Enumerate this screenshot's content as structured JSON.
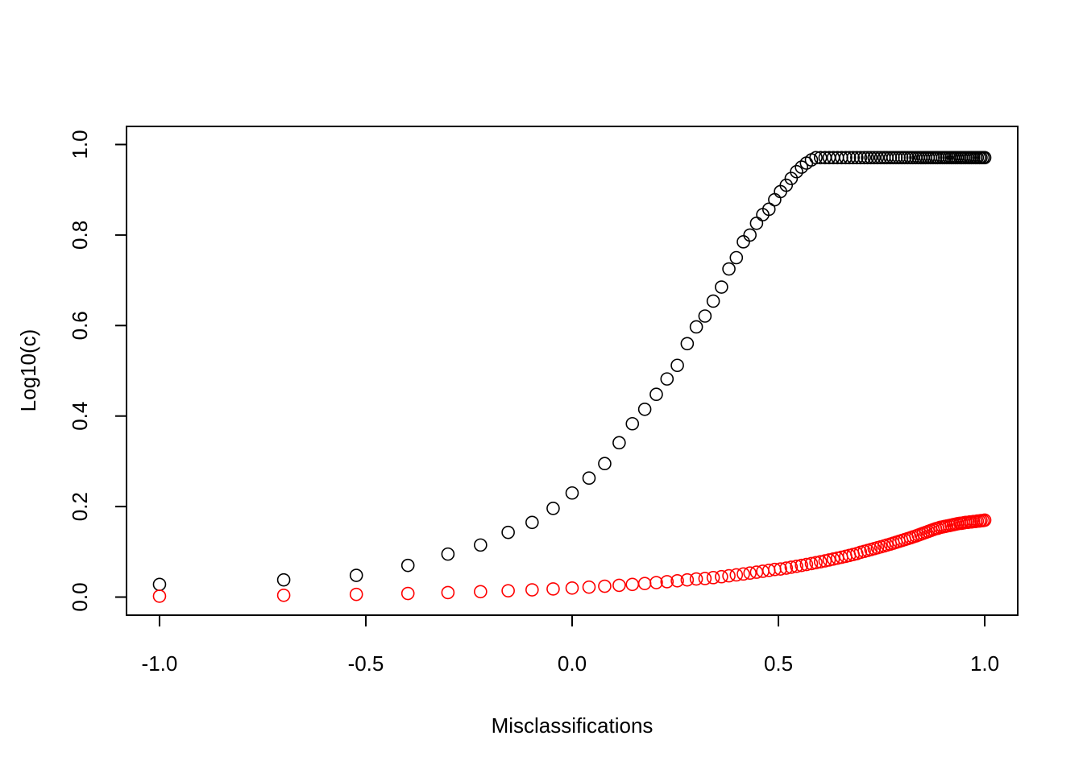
{
  "chart_data": {
    "type": "scatter",
    "title": "",
    "xlabel": "Misclassifications",
    "ylabel": "Log10(c)",
    "xlim": [
      -1.08,
      1.08
    ],
    "ylim": [
      -0.04,
      1.04
    ],
    "x_ticks": [
      -1.0,
      -0.5,
      0.0,
      0.5,
      1.0
    ],
    "x_tick_labels": [
      "-1.0",
      "-0.5",
      "0.0",
      "0.5",
      "1.0"
    ],
    "y_ticks": [
      0.0,
      0.2,
      0.4,
      0.6,
      0.8,
      1.0
    ],
    "y_tick_labels": [
      "0.0",
      "0.2",
      "0.4",
      "0.6",
      "0.8",
      "1.0"
    ],
    "grid": false,
    "marker": "open-circle",
    "series": [
      {
        "color": "#000000",
        "x": [
          -1.0,
          -0.699,
          -0.523,
          -0.398,
          -0.301,
          -0.222,
          -0.155,
          -0.097,
          -0.046,
          0.0,
          0.041,
          0.079,
          0.114,
          0.146,
          0.176,
          0.204,
          0.23,
          0.255,
          0.279,
          0.301,
          0.322,
          0.342,
          0.362,
          0.38,
          0.398,
          0.415,
          0.431,
          0.447,
          0.462,
          0.477,
          0.491,
          0.505,
          0.519,
          0.531,
          0.544,
          0.556,
          0.568,
          0.58,
          0.591,
          0.602,
          0.613,
          0.623,
          0.633,
          0.643,
          0.653,
          0.663,
          0.672,
          0.681,
          0.69,
          0.699,
          0.708,
          0.716,
          0.724,
          0.732,
          0.74,
          0.748,
          0.756,
          0.763,
          0.771,
          0.778,
          0.785,
          0.792,
          0.799,
          0.806,
          0.813,
          0.82,
          0.826,
          0.833,
          0.839,
          0.845,
          0.851,
          0.857,
          0.863,
          0.869,
          0.875,
          0.881,
          0.886,
          0.892,
          0.898,
          0.903,
          0.908,
          0.914,
          0.919,
          0.924,
          0.929,
          0.934,
          0.94,
          0.944,
          0.949,
          0.954,
          0.959,
          0.964,
          0.968,
          0.973,
          0.978,
          0.982,
          0.987,
          0.991,
          0.996,
          1.0
        ],
        "y": [
          0.028,
          0.038,
          0.048,
          0.07,
          0.095,
          0.115,
          0.143,
          0.165,
          0.196,
          0.23,
          0.263,
          0.295,
          0.341,
          0.383,
          0.415,
          0.448,
          0.482,
          0.512,
          0.56,
          0.597,
          0.621,
          0.654,
          0.685,
          0.725,
          0.75,
          0.785,
          0.8,
          0.826,
          0.845,
          0.857,
          0.878,
          0.896,
          0.91,
          0.925,
          0.94,
          0.95,
          0.959,
          0.966,
          0.971,
          0.971,
          0.971,
          0.971,
          0.971,
          0.971,
          0.971,
          0.971,
          0.971,
          0.971,
          0.971,
          0.971,
          0.971,
          0.971,
          0.971,
          0.971,
          0.971,
          0.971,
          0.971,
          0.971,
          0.971,
          0.971,
          0.971,
          0.971,
          0.971,
          0.971,
          0.971,
          0.971,
          0.971,
          0.971,
          0.971,
          0.971,
          0.971,
          0.971,
          0.971,
          0.971,
          0.971,
          0.971,
          0.971,
          0.971,
          0.971,
          0.971,
          0.971,
          0.971,
          0.971,
          0.971,
          0.971,
          0.971,
          0.971,
          0.971,
          0.971,
          0.971,
          0.971,
          0.971,
          0.971,
          0.971,
          0.971,
          0.971,
          0.971,
          0.971,
          0.971,
          0.971
        ]
      },
      {
        "color": "#ff0000",
        "x": [
          -1.0,
          -0.699,
          -0.523,
          -0.398,
          -0.301,
          -0.222,
          -0.155,
          -0.097,
          -0.046,
          0.0,
          0.041,
          0.079,
          0.114,
          0.146,
          0.176,
          0.204,
          0.23,
          0.255,
          0.279,
          0.301,
          0.322,
          0.342,
          0.362,
          0.38,
          0.398,
          0.415,
          0.431,
          0.447,
          0.462,
          0.477,
          0.491,
          0.505,
          0.519,
          0.531,
          0.544,
          0.556,
          0.568,
          0.58,
          0.591,
          0.602,
          0.613,
          0.623,
          0.633,
          0.643,
          0.653,
          0.663,
          0.672,
          0.681,
          0.69,
          0.699,
          0.708,
          0.716,
          0.724,
          0.732,
          0.74,
          0.748,
          0.756,
          0.763,
          0.771,
          0.778,
          0.785,
          0.792,
          0.799,
          0.806,
          0.813,
          0.82,
          0.826,
          0.833,
          0.839,
          0.845,
          0.851,
          0.857,
          0.863,
          0.869,
          0.875,
          0.881,
          0.886,
          0.892,
          0.898,
          0.903,
          0.908,
          0.914,
          0.919,
          0.924,
          0.929,
          0.934,
          0.94,
          0.944,
          0.949,
          0.954,
          0.959,
          0.964,
          0.968,
          0.973,
          0.978,
          0.982,
          0.987,
          0.991,
          0.996,
          1.0
        ],
        "y": [
          0.002,
          0.004,
          0.006,
          0.008,
          0.01,
          0.012,
          0.014,
          0.016,
          0.018,
          0.02,
          0.022,
          0.024,
          0.026,
          0.028,
          0.03,
          0.032,
          0.034,
          0.036,
          0.038,
          0.04,
          0.041,
          0.043,
          0.045,
          0.047,
          0.049,
          0.051,
          0.053,
          0.055,
          0.057,
          0.059,
          0.061,
          0.062,
          0.064,
          0.066,
          0.068,
          0.07,
          0.072,
          0.074,
          0.076,
          0.078,
          0.08,
          0.082,
          0.084,
          0.086,
          0.088,
          0.09,
          0.092,
          0.094,
          0.096,
          0.099,
          0.101,
          0.103,
          0.105,
          0.107,
          0.109,
          0.111,
          0.113,
          0.115,
          0.117,
          0.119,
          0.121,
          0.123,
          0.125,
          0.127,
          0.129,
          0.131,
          0.133,
          0.135,
          0.137,
          0.139,
          0.141,
          0.143,
          0.145,
          0.147,
          0.149,
          0.151,
          0.152,
          0.154,
          0.155,
          0.156,
          0.157,
          0.158,
          0.159,
          0.16,
          0.161,
          0.162,
          0.163,
          0.163,
          0.164,
          0.165,
          0.165,
          0.166,
          0.166,
          0.167,
          0.167,
          0.168,
          0.168,
          0.169,
          0.169,
          0.17
        ]
      }
    ]
  }
}
